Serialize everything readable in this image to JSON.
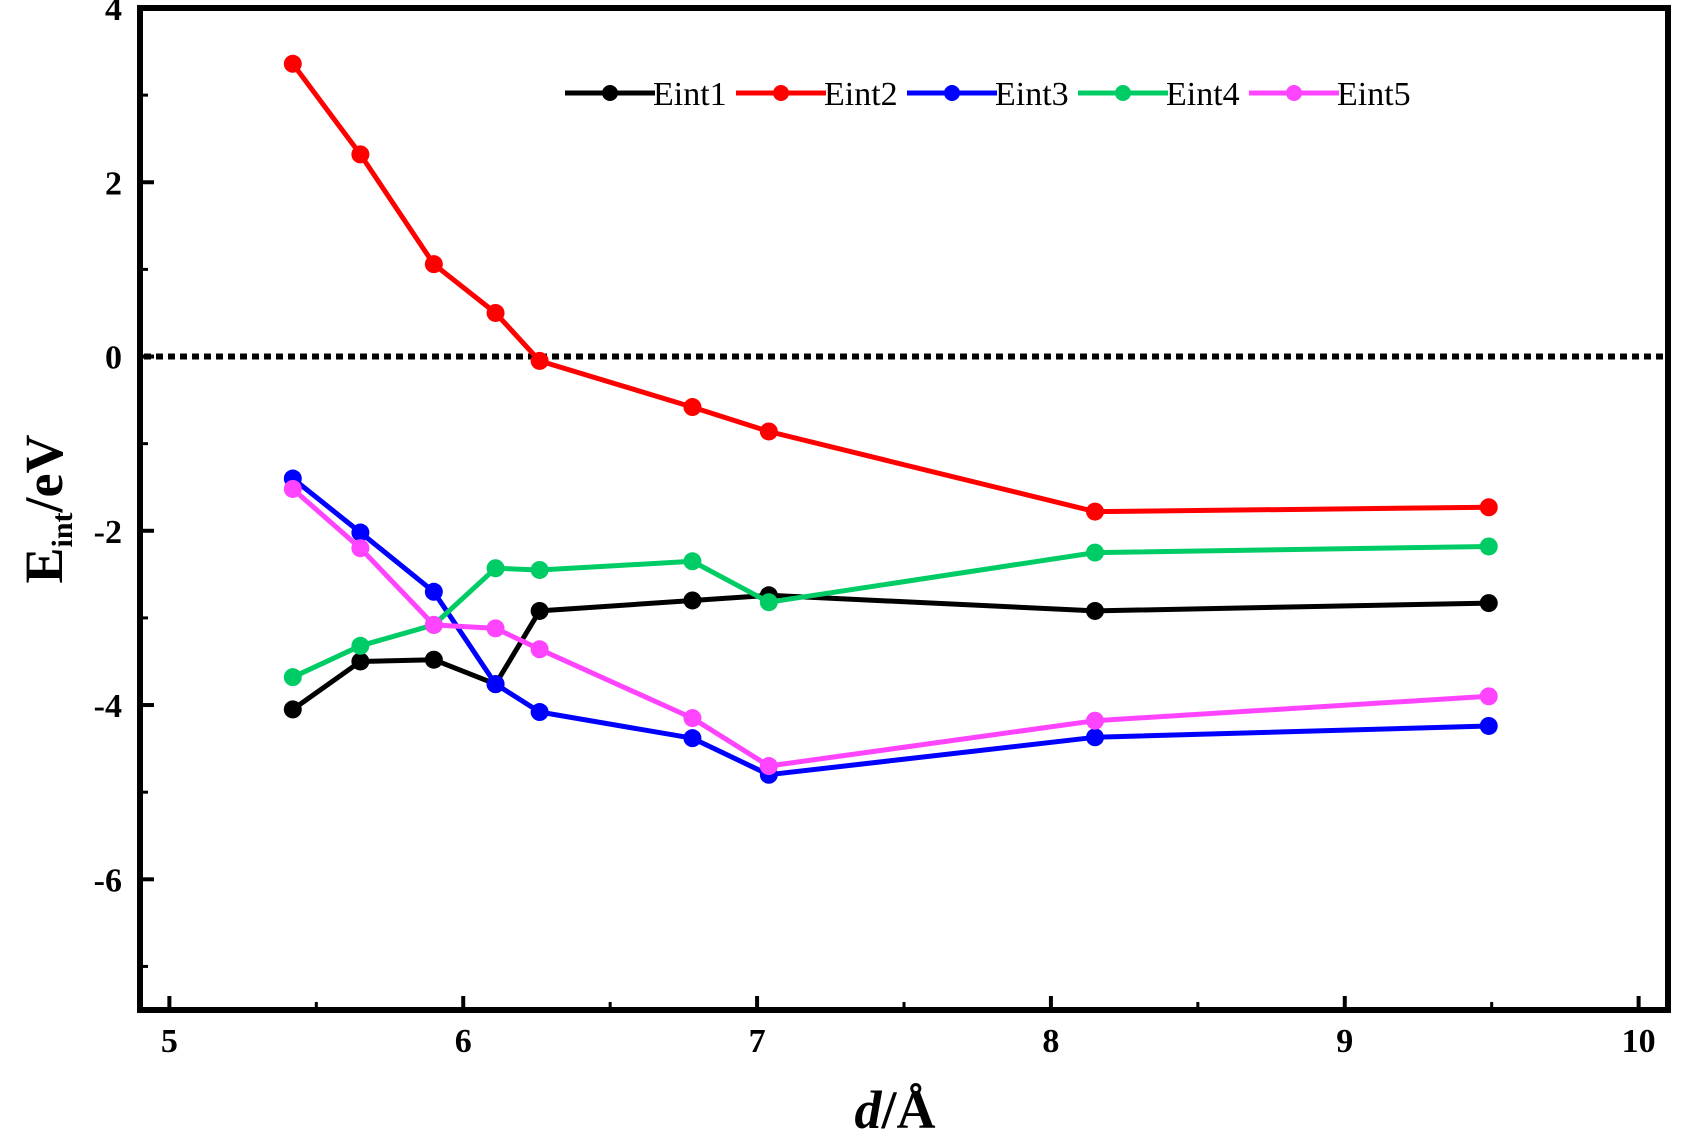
{
  "chart_data": {
    "type": "line",
    "title": "",
    "xlabel": {
      "italic": "d",
      "rest": "/Å"
    },
    "ylabel": {
      "main": "E",
      "sub": "int",
      "rest": "/eV"
    },
    "xlim": [
      4.9,
      10.1
    ],
    "ylim": [
      -7.5,
      4
    ],
    "xticks": [
      5,
      6,
      7,
      8,
      9,
      10
    ],
    "yticks": [
      4,
      2,
      0,
      -2,
      -4,
      -6
    ],
    "xtick_labels": [
      "5",
      "6",
      "7",
      "8",
      "9",
      "10"
    ],
    "ytick_labels": [
      "4",
      "2",
      "0",
      "-2",
      "-4",
      "-6"
    ],
    "grid": false,
    "legend_position": "top",
    "reference_line": {
      "y": 0,
      "style": "dotted",
      "color": "#000000"
    },
    "x": [
      5.42,
      5.65,
      5.9,
      6.11,
      6.26,
      6.78,
      7.04,
      8.15,
      9.49
    ],
    "series": [
      {
        "name": "Eint1",
        "color": "#000000",
        "values": [
          -4.05,
          -3.5,
          -3.48,
          -3.76,
          -2.92,
          -2.8,
          -2.74,
          -2.92,
          -2.83
        ]
      },
      {
        "name": "Eint2",
        "color": "#ff0000",
        "values": [
          3.36,
          2.32,
          1.06,
          0.5,
          -0.05,
          -0.58,
          -0.86,
          -1.78,
          -1.73
        ]
      },
      {
        "name": "Eint3",
        "color": "#0000ff",
        "values": [
          -1.4,
          -2.02,
          -2.7,
          -3.76,
          -4.08,
          -4.38,
          -4.8,
          -4.37,
          -4.24
        ]
      },
      {
        "name": "Eint4",
        "color": "#00cc66",
        "values": [
          -3.68,
          -3.32,
          -3.08,
          -2.43,
          -2.45,
          -2.35,
          -2.82,
          -2.25,
          -2.18
        ]
      },
      {
        "name": "Eint5",
        "color": "#ff44ff",
        "values": [
          -1.52,
          -2.2,
          -3.08,
          -3.12,
          -3.36,
          -4.15,
          -4.7,
          -4.18,
          -3.9
        ]
      }
    ]
  }
}
